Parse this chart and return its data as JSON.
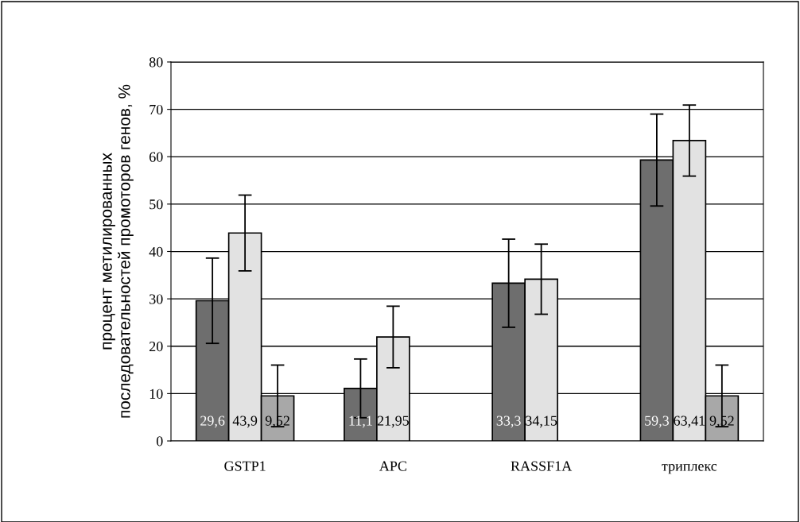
{
  "chart_data": {
    "type": "bar",
    "ylabel": "процент метилированных\nпоследовательностей промоторов генов, %",
    "categories": [
      "GSTP1",
      "APC",
      "RASSF1A",
      "триплекс"
    ],
    "series": [
      {
        "color": "#6e6e6e",
        "values": [
          29.6,
          11.1,
          33.3,
          59.3
        ],
        "errors": [
          9,
          6.2,
          9.3,
          9.7
        ],
        "value_labels": [
          "29,6",
          "11,1",
          "33,3",
          "59,3"
        ]
      },
      {
        "color": "#e2e2e2",
        "values": [
          43.9,
          21.95,
          34.15,
          63.41
        ],
        "errors": [
          8,
          6.5,
          7.4,
          7.5
        ],
        "value_labels": [
          "43,9",
          "21,95",
          "34,15",
          "63,41"
        ]
      },
      {
        "color": "#a8a8a8",
        "values": [
          9.52,
          null,
          null,
          9.52
        ],
        "errors": [
          6.5,
          null,
          null,
          6.5
        ],
        "value_labels": [
          "9,52",
          null,
          null,
          "9,52"
        ]
      }
    ],
    "ylim": [
      0,
      80
    ],
    "yticks": [
      0,
      10,
      20,
      30,
      40,
      50,
      60,
      70,
      80
    ],
    "grid": "y"
  }
}
